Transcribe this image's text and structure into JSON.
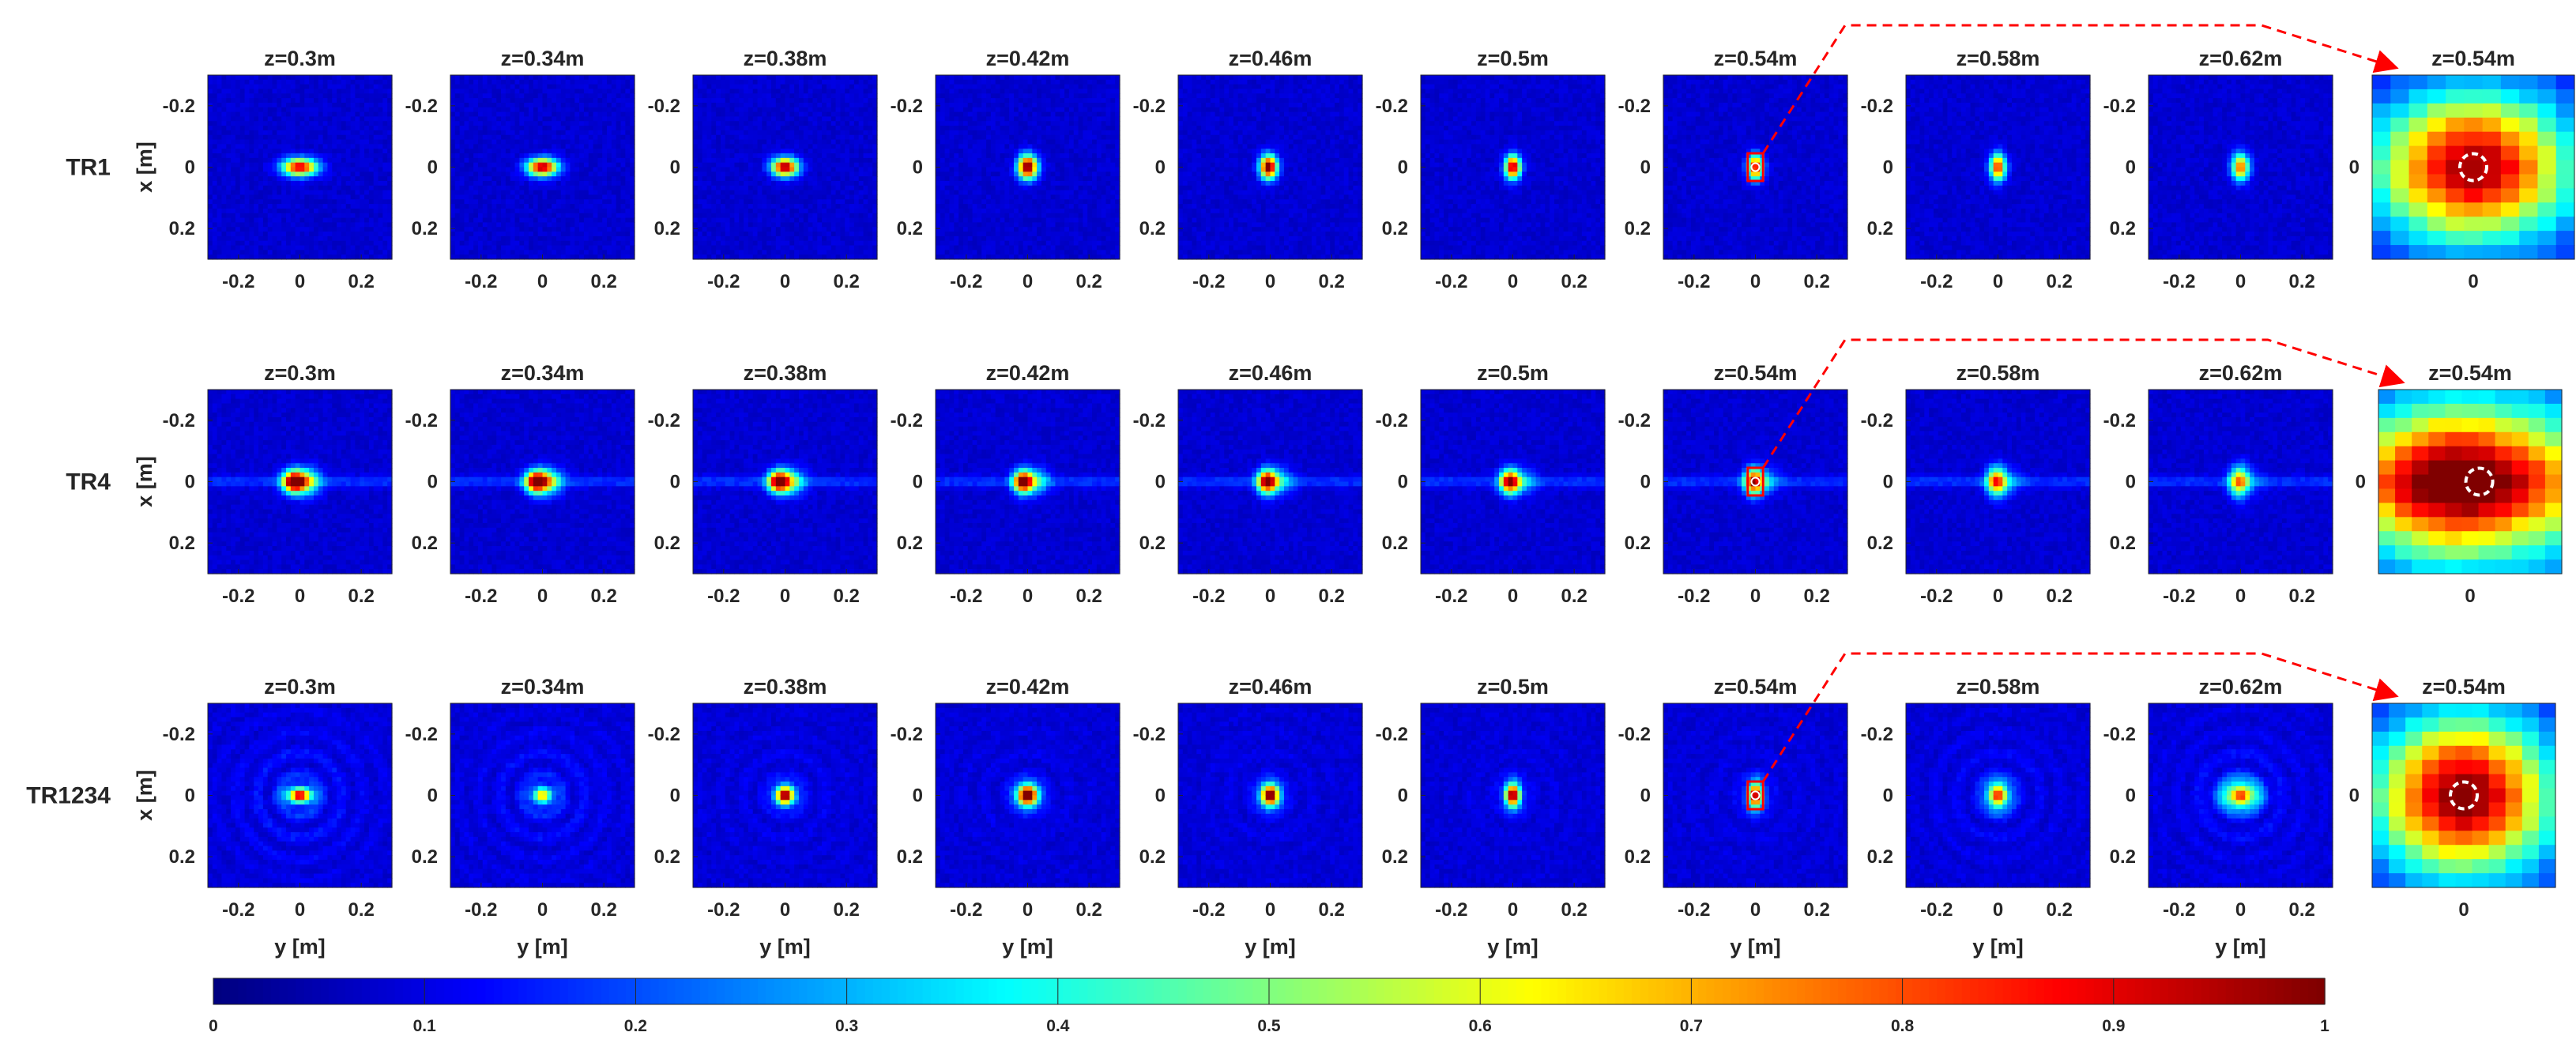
{
  "chart_data": {
    "type": "heatmap",
    "colormap": "jet",
    "colorbar": {
      "min": 0,
      "max": 1,
      "ticks": [
        "0",
        "0.1",
        "0.2",
        "0.3",
        "0.4",
        "0.5",
        "0.6",
        "0.7",
        "0.8",
        "0.9",
        "1"
      ]
    },
    "axis_labels": {
      "x": "y [m]",
      "y": "x [m]"
    },
    "panel_ticks": [
      "-0.2",
      "0",
      "0.2"
    ],
    "zoom_ticks": [
      "0"
    ],
    "rows": [
      {
        "label": "TR1",
        "panels": [
          {
            "title": "z=0.3m",
            "peak": 0.85,
            "y0": 0.0,
            "x0": 0.0,
            "sy": 0.04,
            "sx": 0.02
          },
          {
            "title": "z=0.34m",
            "peak": 0.9,
            "y0": 0.0,
            "x0": 0.0,
            "sy": 0.035,
            "sx": 0.02
          },
          {
            "title": "z=0.38m",
            "peak": 0.92,
            "y0": 0.0,
            "x0": 0.0,
            "sy": 0.03,
            "sx": 0.021
          },
          {
            "title": "z=0.42m",
            "peak": 0.98,
            "y0": 0.0,
            "x0": 0.0,
            "sy": 0.022,
            "sx": 0.027
          },
          {
            "title": "z=0.46m",
            "peak": 0.95,
            "y0": -0.005,
            "x0": 0.0,
            "sy": 0.02,
            "sx": 0.027
          },
          {
            "title": "z=0.5m",
            "peak": 0.9,
            "y0": 0.0,
            "x0": 0.0,
            "sy": 0.018,
            "sx": 0.027
          },
          {
            "title": "z=0.54m",
            "peak": 0.85,
            "y0": 0.0,
            "x0": 0.0,
            "sy": 0.018,
            "sx": 0.028
          },
          {
            "title": "z=0.58m",
            "peak": 0.78,
            "y0": 0.0,
            "x0": 0.0,
            "sy": 0.018,
            "sx": 0.03
          },
          {
            "title": "z=0.62m",
            "peak": 0.7,
            "y0": 0.0,
            "x0": 0.0,
            "sy": 0.02,
            "sx": 0.03
          }
        ],
        "zoom": {
          "title": "z=0.54m"
        }
      },
      {
        "label": "TR4",
        "panels": [
          {
            "title": "z=0.3m",
            "peak": 0.95,
            "y0": -0.02,
            "x0": 0.0,
            "sy": 0.025,
            "sx": 0.025,
            "tail": 0.45
          },
          {
            "title": "z=0.34m",
            "peak": 0.95,
            "y0": -0.02,
            "x0": 0.0,
            "sy": 0.025,
            "sx": 0.025,
            "tail": 0.4
          },
          {
            "title": "z=0.38m",
            "peak": 0.93,
            "y0": -0.02,
            "x0": 0.0,
            "sy": 0.024,
            "sx": 0.025,
            "tail": 0.35
          },
          {
            "title": "z=0.42m",
            "peak": 0.9,
            "y0": -0.015,
            "x0": 0.0,
            "sy": 0.022,
            "sx": 0.026,
            "tail": 0.3
          },
          {
            "title": "z=0.46m",
            "peak": 0.88,
            "y0": -0.01,
            "x0": 0.0,
            "sy": 0.022,
            "sx": 0.027,
            "tail": 0.25
          },
          {
            "title": "z=0.5m",
            "peak": 0.85,
            "y0": -0.01,
            "x0": 0.0,
            "sy": 0.022,
            "sx": 0.028,
            "tail": 0.22
          },
          {
            "title": "z=0.54m",
            "peak": 0.8,
            "y0": -0.005,
            "x0": 0.0,
            "sy": 0.022,
            "sx": 0.03,
            "tail": 0.2
          },
          {
            "title": "z=0.58m",
            "peak": 0.7,
            "y0": -0.005,
            "x0": 0.0,
            "sy": 0.022,
            "sx": 0.032,
            "tail": 0.18
          },
          {
            "title": "z=0.62m",
            "peak": 0.62,
            "y0": -0.005,
            "x0": 0.0,
            "sy": 0.022,
            "sx": 0.034,
            "tail": 0.15
          }
        ],
        "zoom": {
          "title": "z=0.54m"
        }
      },
      {
        "label": "TR1234",
        "panels": [
          {
            "title": "z=0.3m",
            "peak": 0.75,
            "y0": 0.0,
            "x0": 0.0,
            "sy": 0.03,
            "sx": 0.018,
            "noise": 0.3
          },
          {
            "title": "z=0.34m",
            "peak": 0.5,
            "y0": 0.0,
            "x0": 0.0,
            "sy": 0.025,
            "sx": 0.02,
            "noise": 0.25
          },
          {
            "title": "z=0.38m",
            "peak": 0.9,
            "y0": 0.0,
            "x0": 0.0,
            "sy": 0.022,
            "sx": 0.022,
            "noise": 0.15
          },
          {
            "title": "z=0.42m",
            "peak": 1.0,
            "y0": 0.0,
            "x0": 0.0,
            "sy": 0.025,
            "sx": 0.025,
            "noise": 0.12
          },
          {
            "title": "z=0.46m",
            "peak": 0.95,
            "y0": 0.0,
            "x0": 0.0,
            "sy": 0.022,
            "sx": 0.026,
            "noise": 0.12
          },
          {
            "title": "z=0.5m",
            "peak": 0.92,
            "y0": 0.0,
            "x0": 0.0,
            "sy": 0.018,
            "sx": 0.028,
            "noise": 0.1
          },
          {
            "title": "z=0.54m",
            "peak": 0.88,
            "y0": 0.0,
            "x0": 0.0,
            "sy": 0.018,
            "sx": 0.03,
            "noise": 0.12
          },
          {
            "title": "z=0.58m",
            "peak": 0.7,
            "y0": 0.0,
            "x0": 0.0,
            "sy": 0.025,
            "sx": 0.03,
            "noise": 0.2
          },
          {
            "title": "z=0.62m",
            "peak": 0.65,
            "y0": 0.0,
            "x0": 0.0,
            "sy": 0.04,
            "sx": 0.03,
            "noise": 0.25
          }
        ],
        "zoom": {
          "title": "z=0.54m"
        }
      }
    ]
  }
}
